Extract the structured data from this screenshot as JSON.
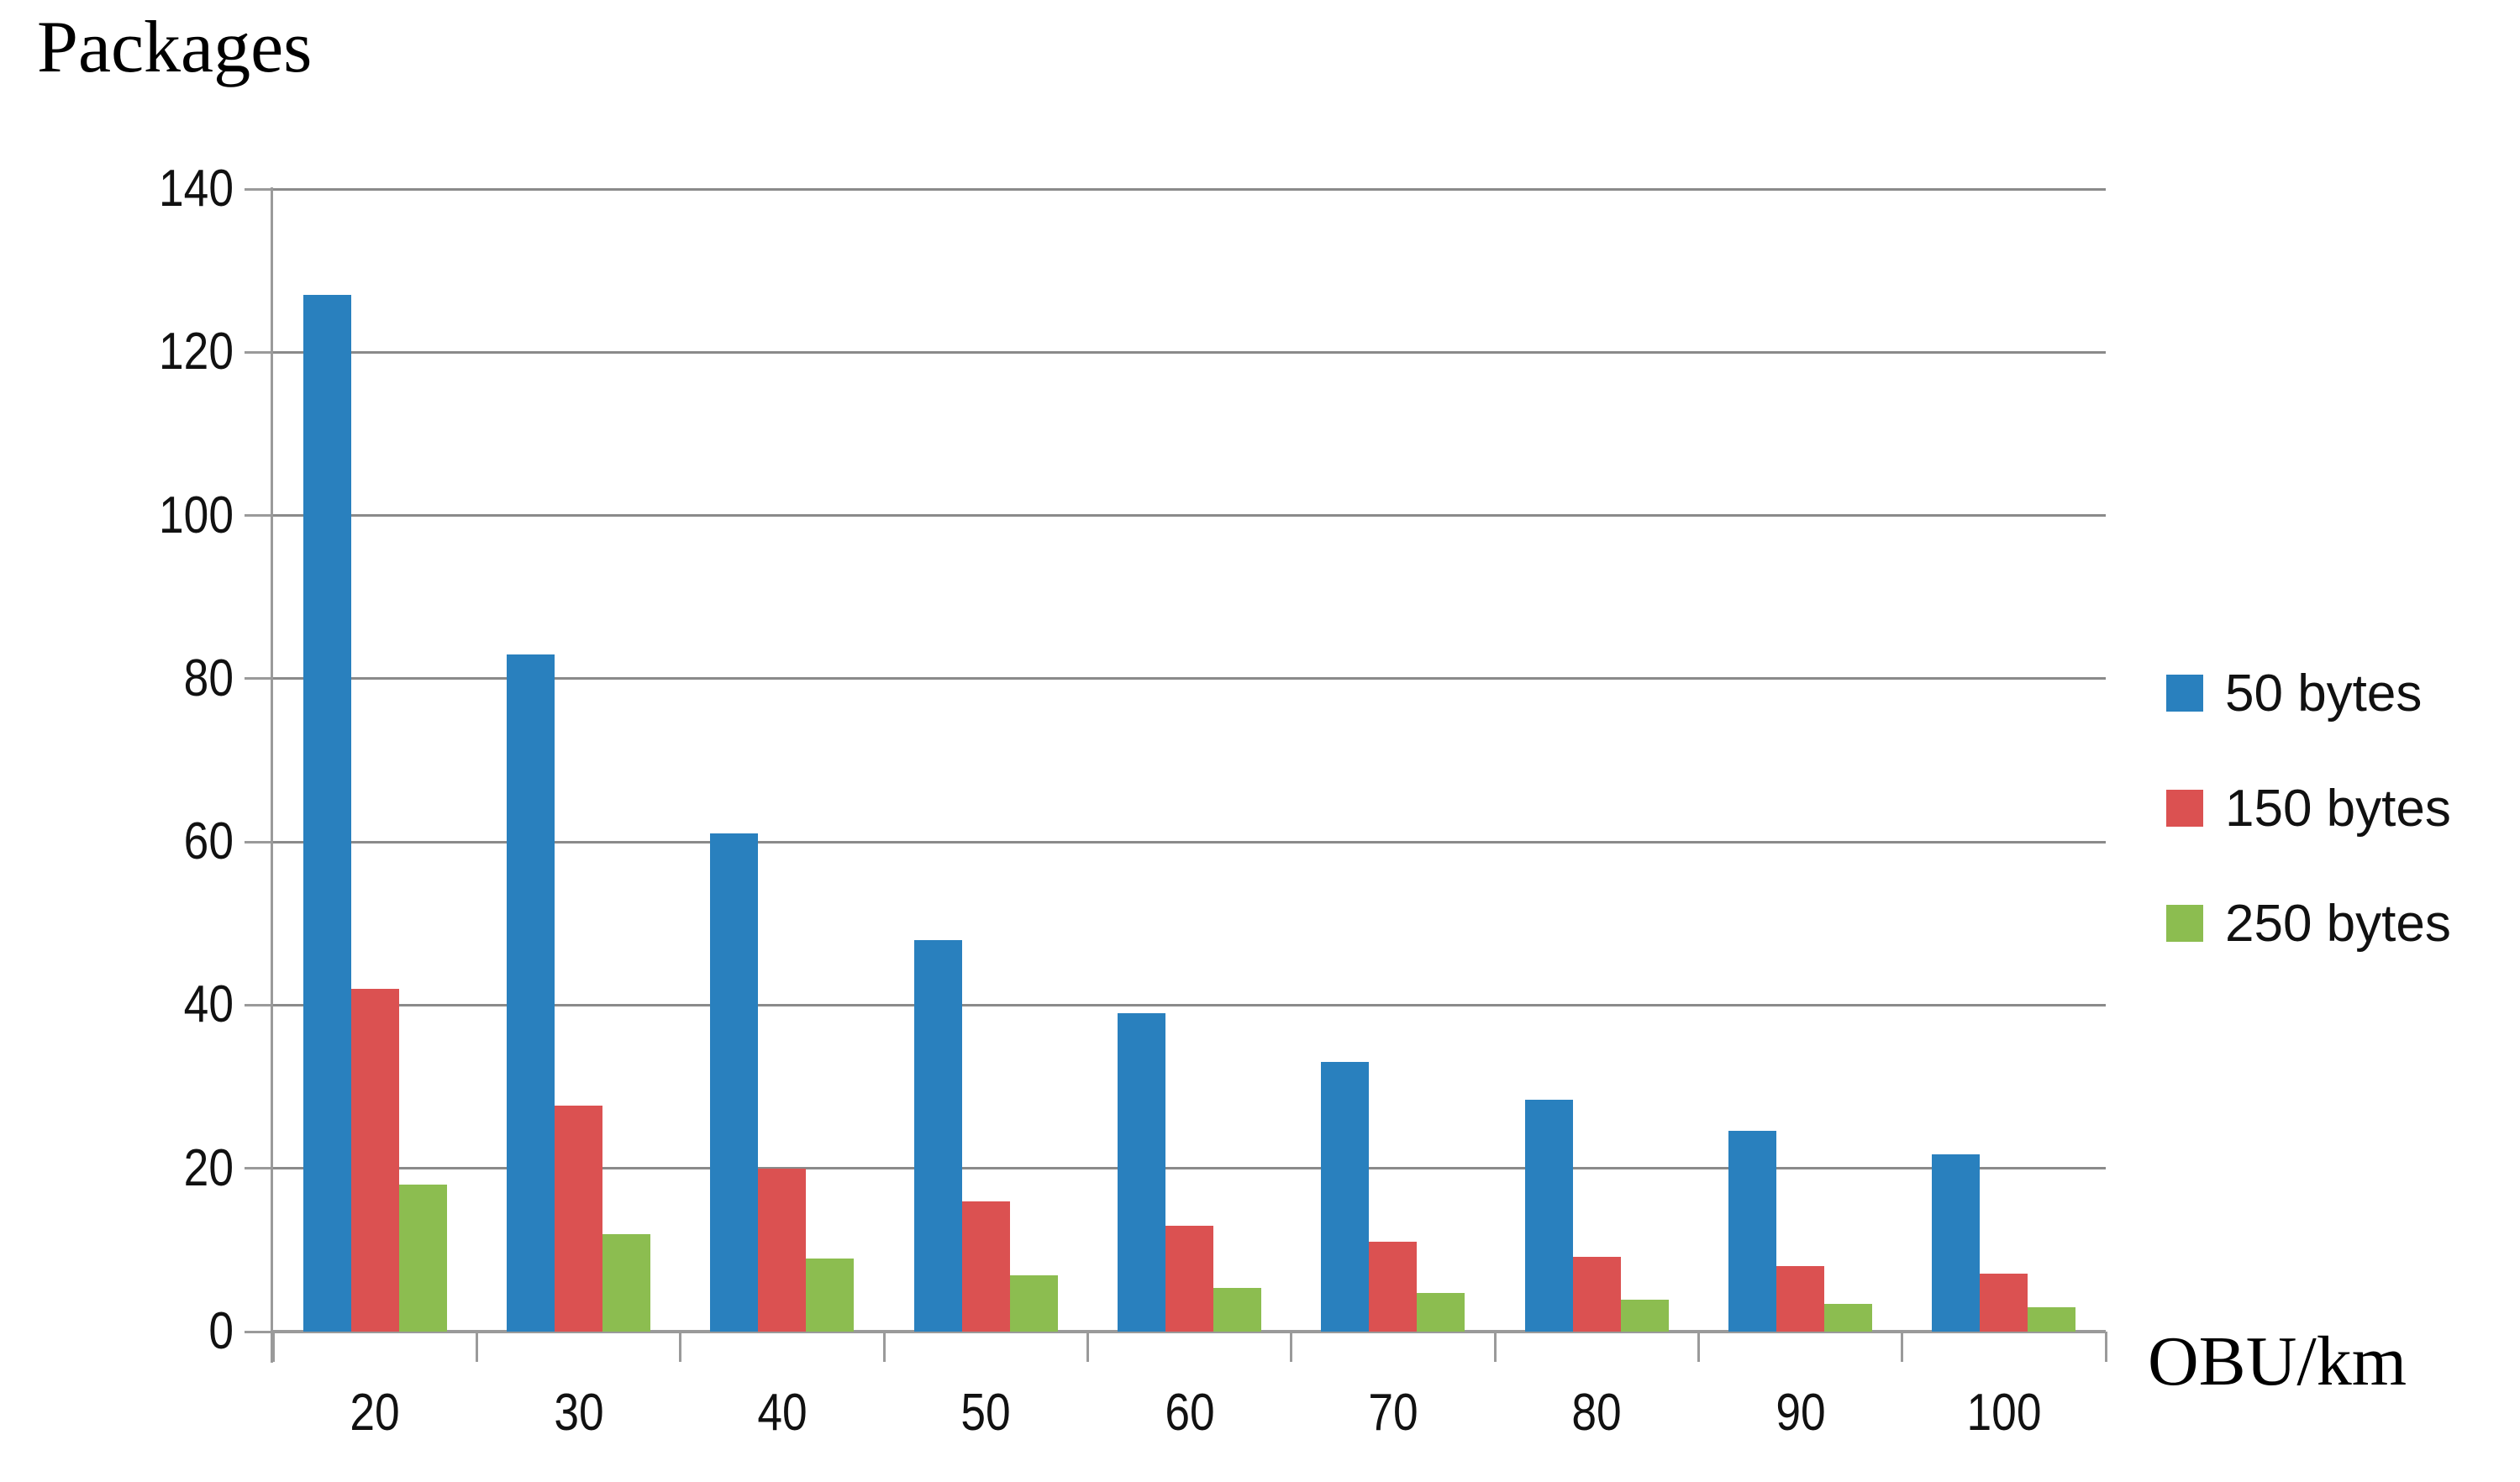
{
  "page": {
    "background": "#ffffff"
  },
  "chart_data": {
    "type": "bar",
    "title": "Packages",
    "xlabel": "OBU/km",
    "ylabel": "",
    "categories": [
      "20",
      "30",
      "40",
      "50",
      "60",
      "70",
      "80",
      "90",
      "100"
    ],
    "series": [
      {
        "name": "50 bytes",
        "color": "#2980BE",
        "values": [
          127,
          83,
          61,
          48,
          39,
          33,
          28.4,
          24.6,
          21.7
        ]
      },
      {
        "name": "150 bytes",
        "color": "#DB5151",
        "values": [
          42,
          27.7,
          20,
          16,
          13,
          11,
          9.2,
          8,
          7.1
        ]
      },
      {
        "name": "250 bytes",
        "color": "#8CBD50",
        "values": [
          18,
          11.9,
          9,
          6.9,
          5.4,
          4.7,
          3.9,
          3.4,
          3
        ]
      }
    ],
    "ylim": [
      0,
      140
    ],
    "ytick_step": 20,
    "yticks": [
      "0",
      "20",
      "40",
      "60",
      "80",
      "100",
      "120",
      "140"
    ],
    "grid": true,
    "legend_position": "right",
    "grid_color": "#8a8a8a",
    "axis_color": "#9a9a9a",
    "text_color": "#111111"
  }
}
